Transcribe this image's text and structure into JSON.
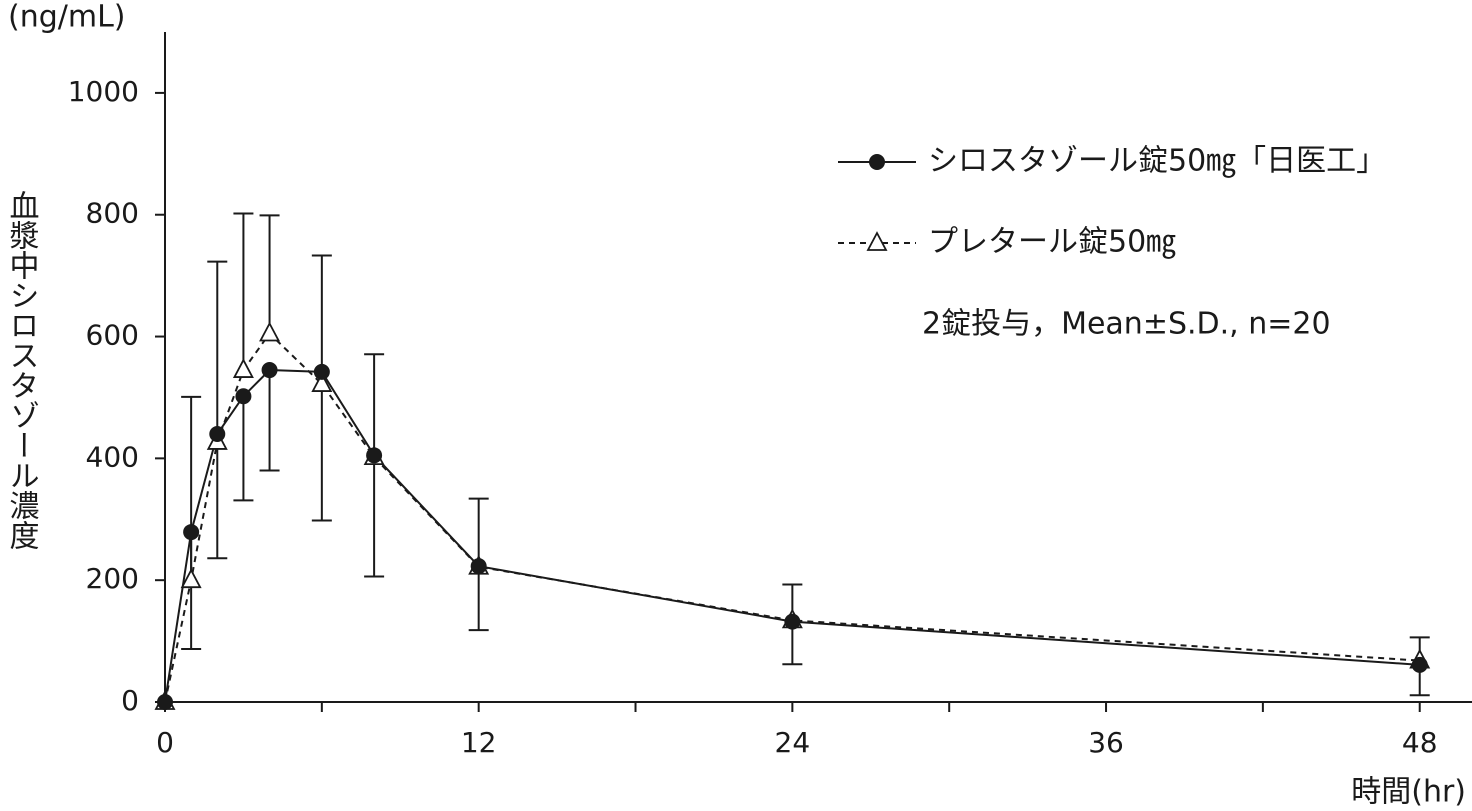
{
  "chart_data": {
    "type": "line",
    "y_unit_label": "(ng/mL)",
    "ylabel": "血漿中シロスタゾール濃度",
    "xlabel": "時間(hr)",
    "annotation": "2錠投与，Mean±S.D., n=20",
    "x": [
      0,
      1,
      2,
      3,
      4,
      6,
      8,
      12,
      24,
      48
    ],
    "xlim": [
      0,
      50
    ],
    "xticks": [
      0,
      12,
      24,
      36,
      48
    ],
    "xminor_ticks": [
      6,
      18,
      30,
      42
    ],
    "ylim": [
      0,
      1100
    ],
    "yticks": [
      0,
      200,
      400,
      600,
      800,
      1000
    ],
    "series": [
      {
        "name": "シロスタゾール錠50㎎「日医工」",
        "color": "#1a1a1a",
        "marker": "circle",
        "dash": false,
        "error_direction": "down",
        "values": [
          0,
          279,
          440,
          502,
          545,
          542,
          405,
          223,
          132,
          61
        ],
        "errors": [
          null,
          192,
          204,
          171,
          165,
          244,
          199,
          105,
          70,
          50
        ]
      },
      {
        "name": "プレタール錠50㎎",
        "color": "#1a1a1a",
        "marker": "triangle",
        "dash": true,
        "error_direction": "up",
        "values": [
          0,
          200,
          427,
          545,
          605,
          522,
          402,
          222,
          134,
          68
        ],
        "errors": [
          null,
          301,
          296,
          257,
          194,
          211,
          169,
          112,
          59,
          38
        ]
      }
    ]
  }
}
